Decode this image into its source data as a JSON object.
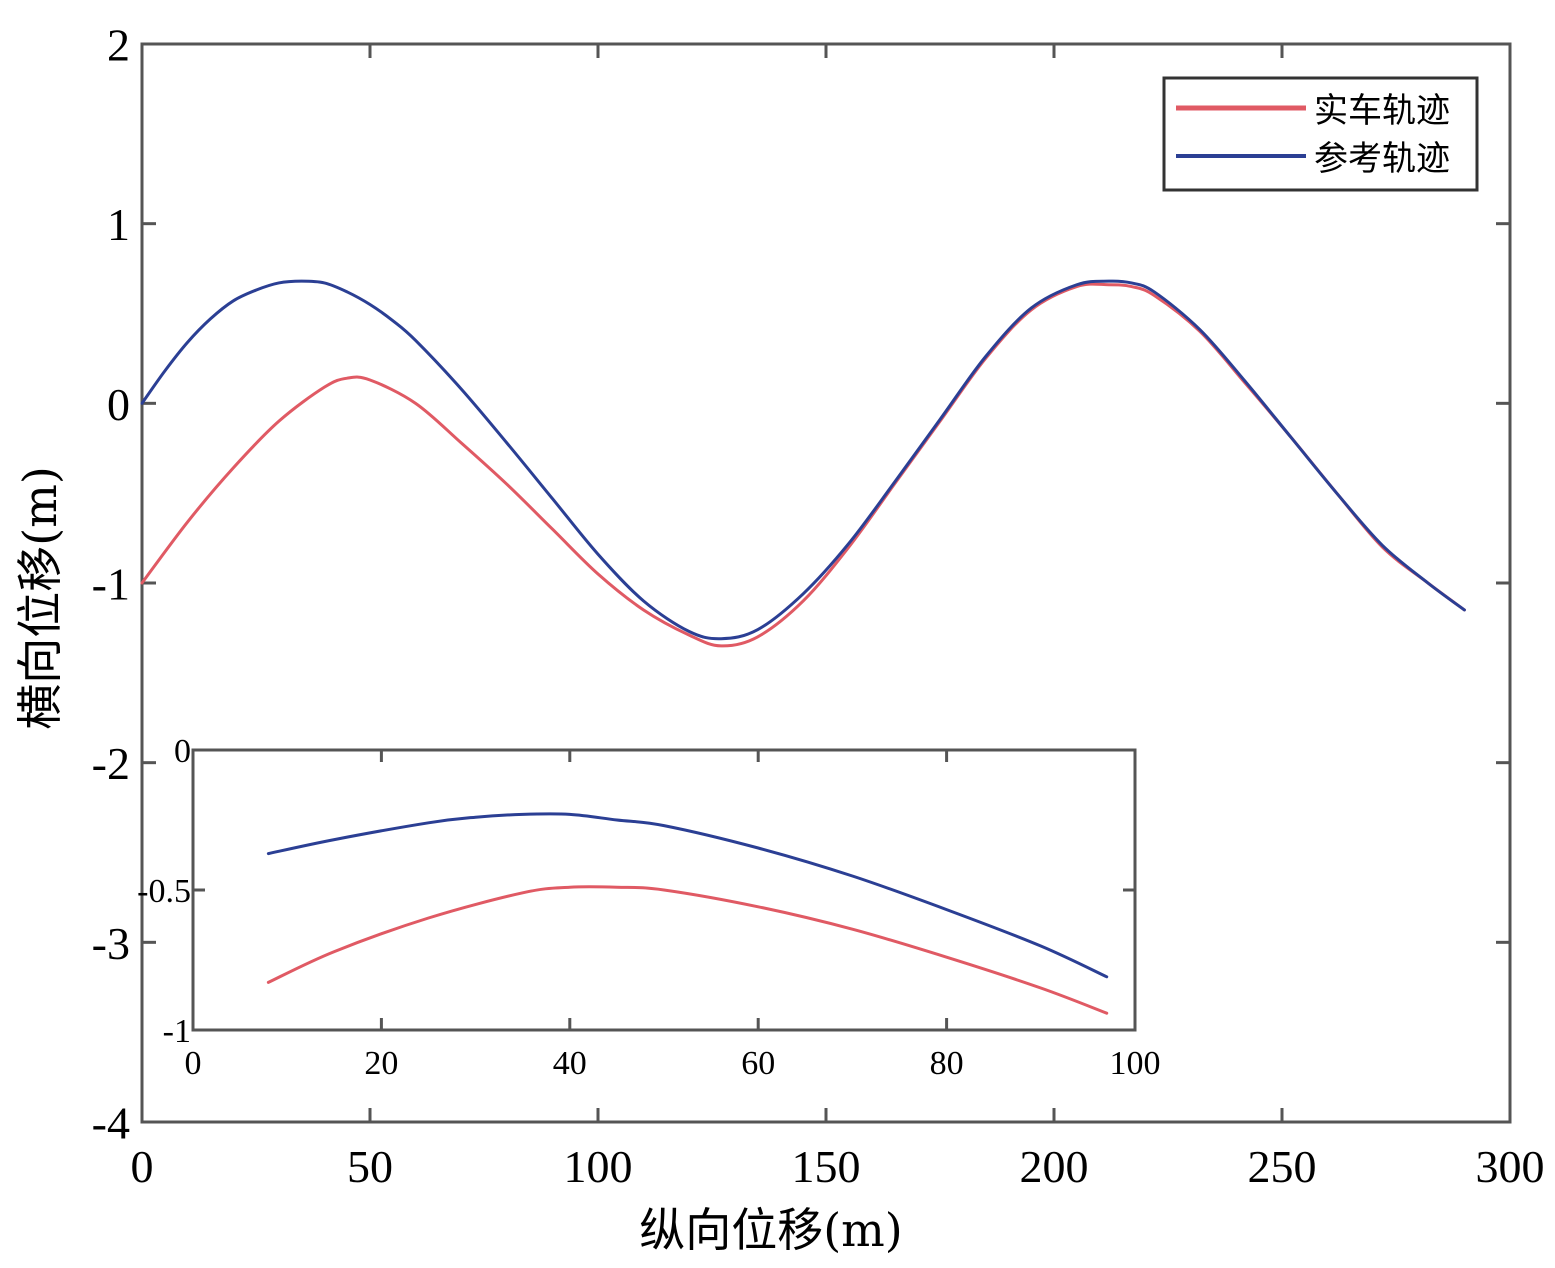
{
  "chart_data": [
    {
      "type": "line",
      "title": "",
      "xlabel": "纵向位移(m)",
      "ylabel": "横向位移(m)",
      "xlim": [
        0,
        300
      ],
      "ylim": [
        -4,
        2
      ],
      "xticks": [
        0,
        50,
        100,
        150,
        200,
        250,
        300
      ],
      "yticks": [
        -4,
        -3,
        -2,
        -1,
        0,
        1,
        2
      ],
      "xtick_labels": [
        "0",
        "50",
        "100",
        "150",
        "200",
        "250",
        "300"
      ],
      "ytick_labels": [
        "-4",
        "-3",
        "-2",
        "-1",
        "0",
        "1",
        "2"
      ],
      "grid": false,
      "legend_position": "top-right",
      "series": [
        {
          "name": "实车轨迹",
          "color": "#e05a64",
          "x": [
            0,
            10,
            20,
            30,
            40,
            45,
            50,
            60,
            70,
            80,
            90,
            100,
            110,
            120,
            127,
            135,
            145,
            155,
            165,
            175,
            185,
            195,
            205,
            212,
            217,
            222,
            232,
            242,
            252,
            262,
            272,
            282,
            290
          ],
          "y": [
            -1.0,
            -0.66,
            -0.36,
            -0.1,
            0.09,
            0.14,
            0.13,
            0.0,
            -0.22,
            -0.45,
            -0.7,
            -0.95,
            -1.15,
            -1.29,
            -1.35,
            -1.3,
            -1.1,
            -0.8,
            -0.45,
            -0.1,
            0.25,
            0.52,
            0.65,
            0.66,
            0.65,
            0.6,
            0.4,
            0.11,
            -0.19,
            -0.5,
            -0.8,
            -1.0,
            -1.15
          ]
        },
        {
          "name": "参考轨迹",
          "color": "#2b3f94",
          "x": [
            0,
            5,
            10,
            15,
            20,
            25,
            30,
            35,
            40,
            45,
            50,
            55,
            60,
            70,
            80,
            90,
            100,
            110,
            120,
            127,
            135,
            145,
            155,
            165,
            175,
            185,
            195,
            205,
            212,
            217,
            222,
            232,
            242,
            252,
            262,
            272,
            282,
            290
          ],
          "y": [
            0.0,
            0.18,
            0.34,
            0.47,
            0.57,
            0.63,
            0.67,
            0.68,
            0.67,
            0.62,
            0.55,
            0.46,
            0.35,
            0.08,
            -0.22,
            -0.53,
            -0.84,
            -1.1,
            -1.27,
            -1.31,
            -1.26,
            -1.06,
            -0.78,
            -0.44,
            -0.09,
            0.26,
            0.53,
            0.66,
            0.68,
            0.67,
            0.62,
            0.41,
            0.12,
            -0.19,
            -0.5,
            -0.79,
            -1.0,
            -1.15
          ]
        }
      ]
    },
    {
      "type": "line",
      "title": "",
      "xlabel": "",
      "ylabel": "",
      "xlim": [
        0,
        100
      ],
      "ylim": [
        -1,
        0
      ],
      "xticks": [
        0,
        20,
        40,
        60,
        80,
        100
      ],
      "yticks": [
        -1,
        -0.5,
        0
      ],
      "xtick_labels": [
        "0",
        "20",
        "40",
        "60",
        "80",
        "100"
      ],
      "ytick_labels": [
        "-1",
        "-0.5",
        "0"
      ],
      "grid": false,
      "legend_position": "none",
      "series": [
        {
          "name": "实车轨迹",
          "color": "#e05a64",
          "x": [
            8,
            15,
            25,
            35,
            40,
            45,
            50,
            60,
            70,
            80,
            90,
            97
          ],
          "y": [
            -0.83,
            -0.72,
            -0.6,
            -0.51,
            -0.49,
            -0.49,
            -0.5,
            -0.56,
            -0.64,
            -0.74,
            -0.85,
            -0.94
          ]
        },
        {
          "name": "参考轨迹",
          "color": "#2b3f94",
          "x": [
            8,
            15,
            25,
            30,
            35,
            40,
            45,
            50,
            60,
            70,
            80,
            90,
            97
          ],
          "y": [
            -0.37,
            -0.32,
            -0.26,
            -0.24,
            -0.23,
            -0.23,
            -0.25,
            -0.27,
            -0.35,
            -0.45,
            -0.57,
            -0.7,
            -0.81
          ]
        }
      ]
    }
  ]
}
